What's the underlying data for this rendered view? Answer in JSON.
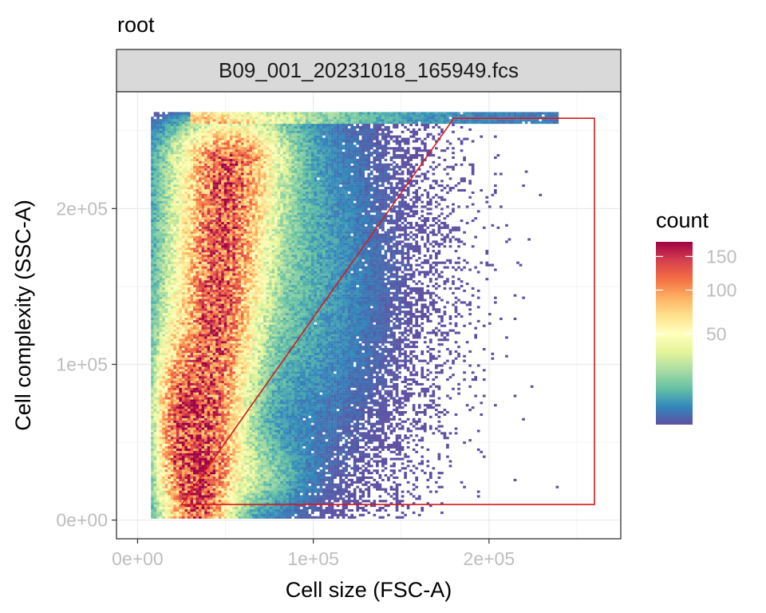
{
  "chart_data": {
    "type": "heatmap",
    "title": "root",
    "facet_label": "B09_001_20231018_165949.fcs",
    "xlabel": "Cell size (FSC-A)",
    "ylabel": "Cell complexity (SSC-A)",
    "xlim": [
      -12000,
      275000
    ],
    "ylim": [
      -12000,
      275000
    ],
    "x_ticks": [
      {
        "value": 0,
        "label": "0e+00"
      },
      {
        "value": 100000,
        "label": "1e+05"
      },
      {
        "value": 200000,
        "label": "2e+05"
      }
    ],
    "y_ticks": [
      {
        "value": 0,
        "label": "0e+00"
      },
      {
        "value": 100000,
        "label": "1e+05"
      },
      {
        "value": 200000,
        "label": "2e+05"
      }
    ],
    "grid": true,
    "legend": {
      "title": "count",
      "position": "right",
      "min": 1,
      "max": 175,
      "ticks": [
        {
          "value": 50,
          "label": "50"
        },
        {
          "value": 100,
          "label": "100"
        },
        {
          "value": 150,
          "label": "150"
        }
      ],
      "colors": [
        "#5E4FA2",
        "#3288BD",
        "#66C2A5",
        "#ABDDA4",
        "#E6F598",
        "#FFFFBF",
        "#FEE08B",
        "#FDAE61",
        "#F46D43",
        "#D53E4F",
        "#9E0142"
      ]
    },
    "density_summary": {
      "main_population_center": [
        45000,
        110000
      ],
      "saturation_row_y": 260000
    },
    "gate": {
      "color": "#d7191c",
      "vertices": [
        [
          25000,
          10000
        ],
        [
          180000,
          258000
        ],
        [
          260000,
          258000
        ],
        [
          260000,
          10000
        ]
      ]
    }
  }
}
